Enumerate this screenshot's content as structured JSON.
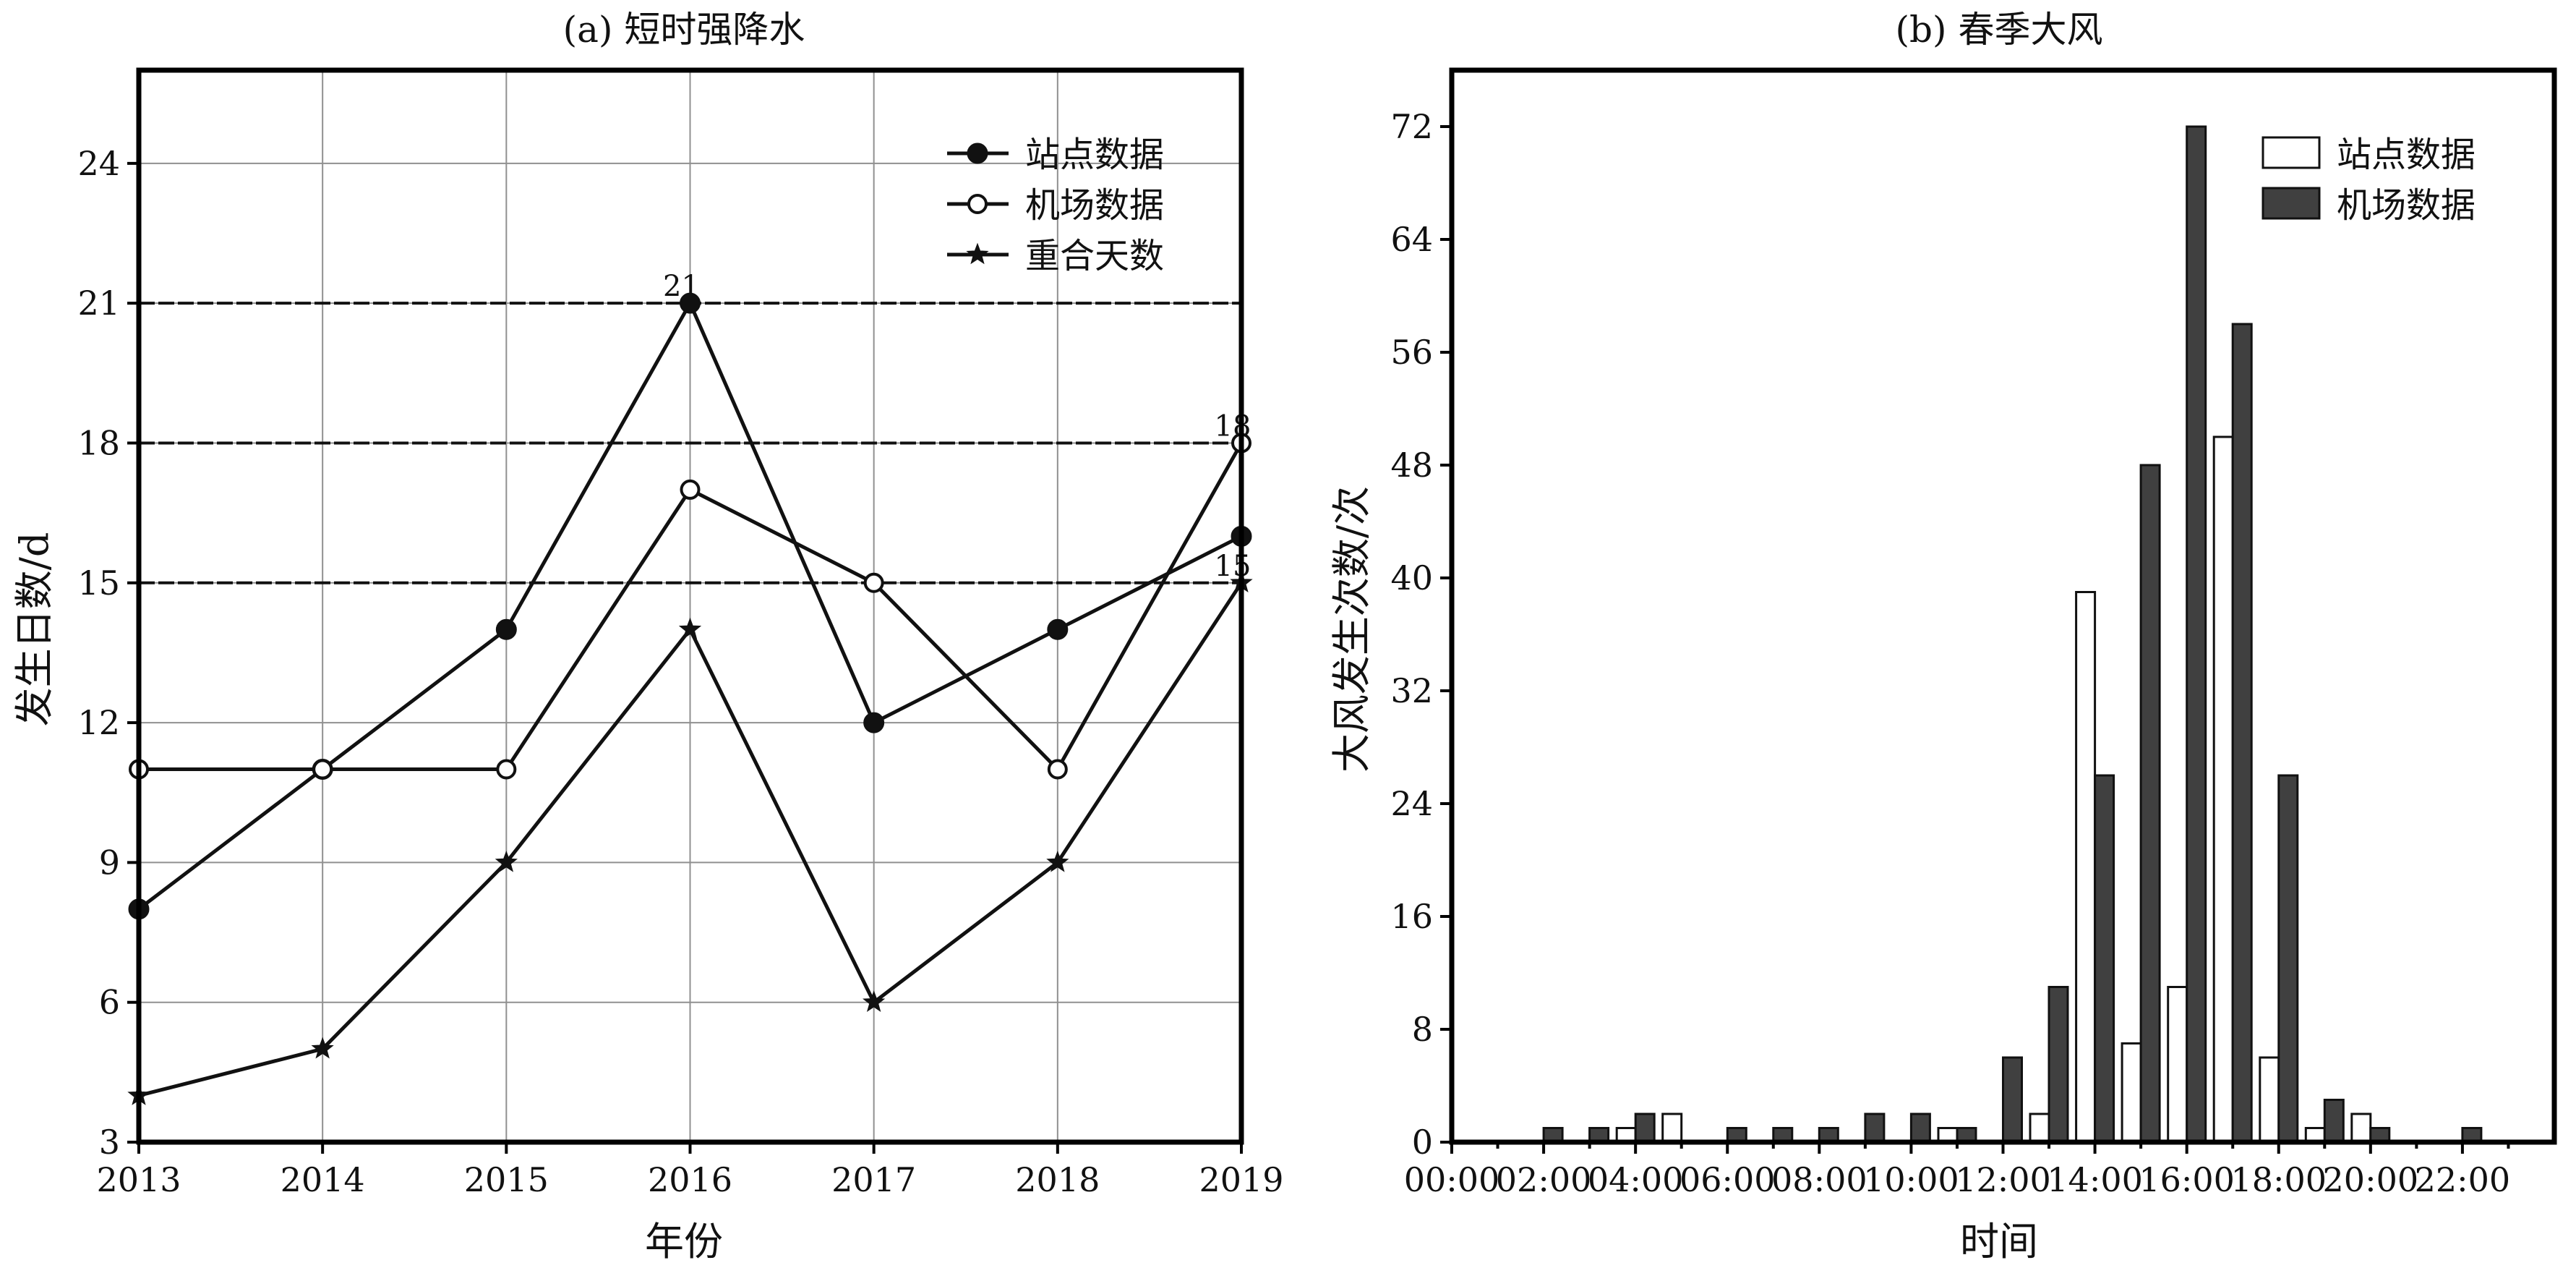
{
  "chart_data": [
    {
      "type": "line",
      "title": "(a) 短时强降水",
      "xlabel": "年份",
      "ylabel": "发生日数/d",
      "x": [
        2013,
        2014,
        2015,
        2016,
        2017,
        2018,
        2019
      ],
      "x_tick_labels": [
        "2013",
        "2014",
        "2015",
        "2016",
        "2017",
        "2018",
        "2019"
      ],
      "xlim": [
        2013,
        2019
      ],
      "ylim": [
        3,
        26
      ],
      "y_ticks": [
        3,
        6,
        9,
        12,
        15,
        18,
        21,
        24
      ],
      "y_tick_labels": [
        "3",
        "6",
        "9",
        "12",
        "15",
        "18",
        "21",
        "24"
      ],
      "grid": true,
      "legend_position": "top-right",
      "series": [
        {
          "name": "站点数据",
          "marker": "filled-circle",
          "values": [
            8,
            11,
            14,
            21,
            12,
            14,
            16
          ]
        },
        {
          "name": "机场数据",
          "marker": "open-circle",
          "values": [
            11,
            11,
            11,
            17,
            15,
            11,
            18
          ]
        },
        {
          "name": "重合天数",
          "marker": "star",
          "values": [
            4,
            5,
            9,
            14,
            6,
            9,
            15
          ]
        }
      ],
      "reference_lines": [
        21,
        18,
        15
      ],
      "annotations": [
        {
          "text": "21",
          "x": 2016,
          "y": 21
        },
        {
          "text": "18",
          "x": 2019,
          "y": 18
        },
        {
          "text": "15",
          "x": 2019,
          "y": 15
        }
      ]
    },
    {
      "type": "bar",
      "title": "(b) 春季大风",
      "xlabel": "时间",
      "ylabel": "大风发生次数/次",
      "categories": [
        "00:00",
        "01:00",
        "02:00",
        "03:00",
        "04:00",
        "05:00",
        "06:00",
        "07:00",
        "08:00",
        "09:00",
        "10:00",
        "11:00",
        "12:00",
        "13:00",
        "14:00",
        "15:00",
        "16:00",
        "17:00",
        "18:00",
        "19:00",
        "20:00",
        "21:00",
        "22:00",
        "23:00"
      ],
      "x_tick_labels": [
        "00:00",
        "02:00",
        "04:00",
        "06:00",
        "08:00",
        "10:00",
        "12:00",
        "14:00",
        "16:00",
        "18:00",
        "20:00",
        "22:00"
      ],
      "ylim": [
        0,
        76
      ],
      "y_ticks": [
        0,
        8,
        16,
        24,
        32,
        40,
        48,
        56,
        64,
        72
      ],
      "y_tick_labels": [
        "0",
        "8",
        "16",
        "24",
        "32",
        "40",
        "48",
        "56",
        "64",
        "72"
      ],
      "grid": false,
      "legend_position": "top-right",
      "series": [
        {
          "name": "站点数据",
          "color": "#ffffff",
          "values": [
            0,
            0,
            0,
            1,
            2,
            0,
            0,
            0,
            0,
            0,
            1,
            0,
            2,
            39,
            7,
            11,
            50,
            6,
            1,
            2,
            0,
            0,
            0,
            0
          ]
        },
        {
          "name": "机场数据",
          "color": "#404040",
          "values": [
            0,
            1,
            1,
            2,
            0,
            1,
            1,
            1,
            2,
            2,
            1,
            6,
            11,
            26,
            48,
            72,
            58,
            26,
            3,
            1,
            0,
            1,
            0,
            0
          ]
        }
      ]
    }
  ]
}
